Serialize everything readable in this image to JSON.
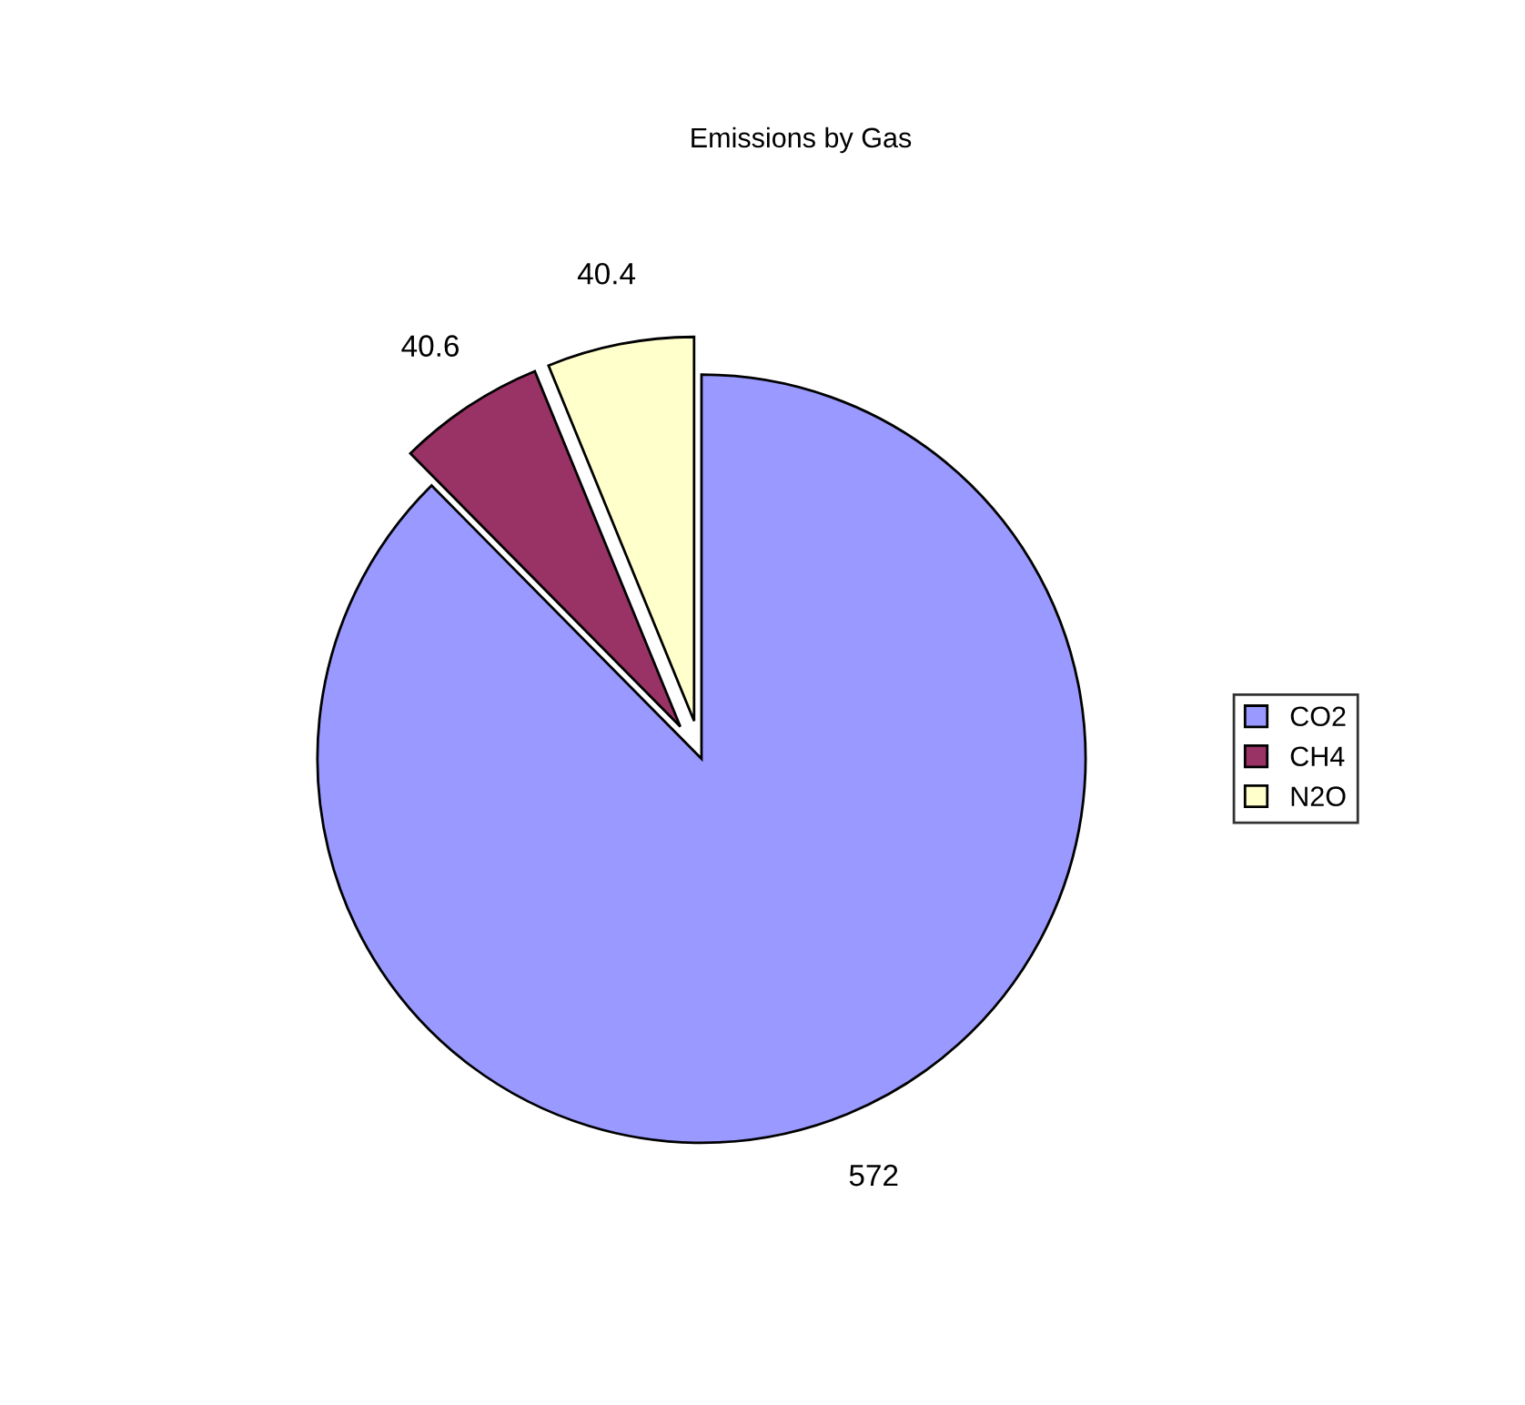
{
  "chart_data": {
    "type": "pie",
    "title": "Emissions by Gas",
    "categories": [
      "CO2",
      "CH4",
      "N2O"
    ],
    "values": [
      572,
      40.6,
      40.4
    ],
    "colors": [
      "#9999ff",
      "#993366",
      "#ffffcc"
    ],
    "data_labels": true,
    "legend": "right"
  }
}
